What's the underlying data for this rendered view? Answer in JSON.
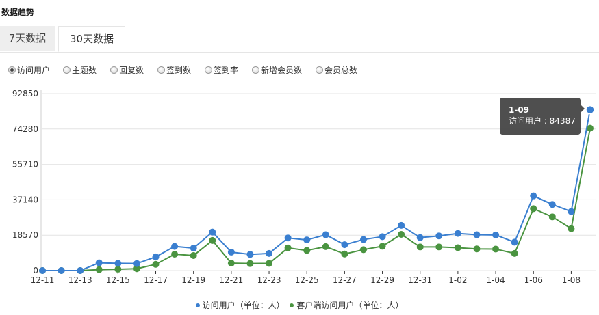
{
  "panel": {
    "title": "数据趋势"
  },
  "tabs": [
    {
      "label": "7天数据",
      "active": false
    },
    {
      "label": "30天数据",
      "active": true
    }
  ],
  "radios": [
    {
      "label": "访问用户",
      "checked": true
    },
    {
      "label": "主题数",
      "checked": false
    },
    {
      "label": "回复数",
      "checked": false
    },
    {
      "label": "签到数",
      "checked": false
    },
    {
      "label": "签到率",
      "checked": false
    },
    {
      "label": "新增会员数",
      "checked": false
    },
    {
      "label": "会员总数",
      "checked": false
    }
  ],
  "tooltip": {
    "date": "1-09",
    "text": "访问用户 : 84387"
  },
  "chart_data": {
    "type": "line",
    "categories": [
      "12-11",
      "12-12",
      "12-13",
      "12-14",
      "12-15",
      "12-16",
      "12-17",
      "12-18",
      "12-19",
      "12-20",
      "12-21",
      "12-22",
      "12-23",
      "12-24",
      "12-25",
      "12-26",
      "12-27",
      "12-28",
      "12-29",
      "12-30",
      "12-31",
      "1-01",
      "1-02",
      "1-03",
      "1-04",
      "1-05",
      "1-06",
      "1-07",
      "1-08",
      "1-09"
    ],
    "xticks": [
      "12-11",
      "12-13",
      "12-15",
      "12-17",
      "12-19",
      "12-21",
      "12-23",
      "12-25",
      "12-27",
      "12-29",
      "12-31",
      "1-02",
      "1-04",
      "1-06",
      "1-08"
    ],
    "yticks": [
      0,
      18570,
      37140,
      55710,
      74280,
      92850
    ],
    "ylim": [
      0,
      92850
    ],
    "grid": true,
    "legend_position": "bottom",
    "series": [
      {
        "name": "访问用户（单位：人）",
        "color": "#3a7fd0",
        "values": [
          0,
          0,
          0,
          4100,
          3800,
          3700,
          7200,
          12700,
          11800,
          20200,
          9700,
          8500,
          9000,
          17100,
          16100,
          18800,
          13600,
          16300,
          17800,
          23700,
          17300,
          18200,
          19500,
          18800,
          18700,
          14900,
          39200,
          34700,
          31000,
          84387
        ]
      },
      {
        "name": "客户端访问用户（单位：人）",
        "color": "#4a9440",
        "values": [
          0,
          0,
          0,
          500,
          700,
          1000,
          3300,
          8600,
          7900,
          15800,
          3900,
          3700,
          3800,
          11900,
          10600,
          12600,
          8700,
          11000,
          12800,
          19000,
          12400,
          12400,
          12000,
          11400,
          11300,
          9000,
          32500,
          28200,
          22000,
          74700
        ]
      }
    ]
  }
}
